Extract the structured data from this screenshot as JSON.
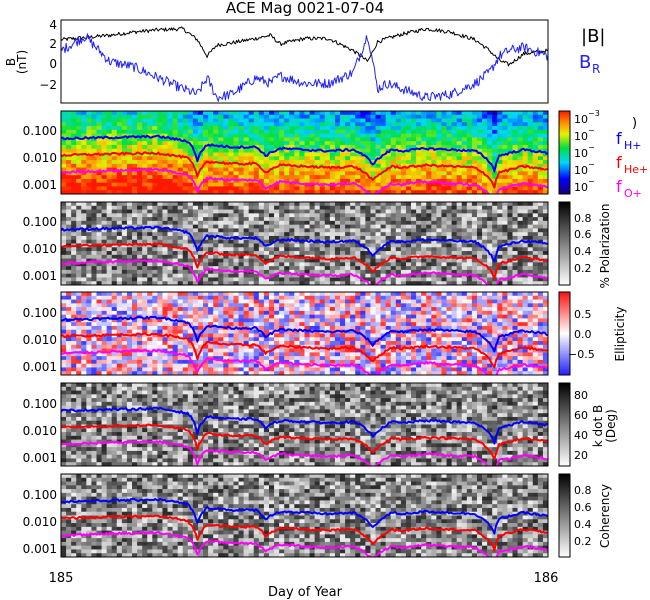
{
  "title": "ACE Mag 0021-07-04",
  "x_axis": {
    "label": "Day of Year",
    "ticks": [
      "185",
      "186"
    ],
    "range": [
      185,
      186
    ]
  },
  "colors": {
    "frame": "#000000",
    "B_magnitude": "#000000",
    "B_R": "#2020ff",
    "f_H": "#0000ff",
    "f_He": "#ff0000",
    "f_O": "#ff00ff"
  },
  "panels": {
    "mag": {
      "ylabel": "B",
      "yunit": "(nT)",
      "yticks": [
        "4",
        "2",
        "0",
        "−2"
      ],
      "legend_B": "|B|",
      "legend_BR_main": "B",
      "legend_BR_sub": "R"
    },
    "power": {
      "yticks": [
        "0.100",
        "0.010",
        "0.001"
      ],
      "colorbar_ticks": [
        "10",
        "10",
        "10",
        "10",
        "10"
      ],
      "colorbar_top_exp": "−3",
      "colorbar_other_exp": "−",
      "legend_H_main": "f",
      "legend_H_sub": "H+",
      "legend_He_main": "f",
      "legend_He_sub": "He+",
      "legend_O_main": "f",
      "legend_O_sub": "O+",
      "bracket": ")"
    },
    "polarization": {
      "yticks": [
        "0.100",
        "0.010",
        "0.001"
      ],
      "colorbar_ticks": [
        "0.8",
        "0.6",
        "0.4",
        "0.2"
      ],
      "colorbar_label": "% Polarization"
    },
    "ellipticity": {
      "yticks": [
        "0.100",
        "0.010",
        "0.001"
      ],
      "colorbar_ticks": [
        "0.5",
        "0.0",
        "−0.5"
      ],
      "colorbar_label": "Ellipticity"
    },
    "kdotb": {
      "yticks": [
        "0.100",
        "0.010",
        "0.001"
      ],
      "colorbar_ticks": [
        "80",
        "60",
        "40",
        "20"
      ],
      "colorbar_label_1": "k dot B",
      "colorbar_label_2": "(Deg)"
    },
    "coherency": {
      "yticks": [
        "0.100",
        "0.010",
        "0.001"
      ],
      "colorbar_ticks": [
        "0.8",
        "0.6",
        "0.4",
        "0.2"
      ],
      "colorbar_label": "Coherency"
    }
  },
  "chart_data": [
    {
      "type": "line",
      "title": "ACE Mag 0021-07-04",
      "xlabel": "Day of Year",
      "ylabel": "B (nT)",
      "xlim": [
        185,
        186
      ],
      "ylim": [
        -3.3,
        4.3
      ],
      "series": [
        {
          "name": "|B|",
          "x": [
            185.0,
            185.05,
            185.1,
            185.15,
            185.2,
            185.25,
            185.28,
            185.3,
            185.32,
            185.35,
            185.4,
            185.43,
            185.45,
            185.5,
            185.55,
            185.6,
            185.63,
            185.65,
            185.67,
            185.7,
            185.75,
            185.8,
            185.85,
            185.88,
            185.9,
            185.92,
            185.95,
            186.0
          ],
          "y": [
            2.5,
            2.7,
            2.9,
            3.2,
            3.4,
            3.5,
            2.5,
            1.0,
            2.0,
            2.2,
            2.6,
            2.9,
            2.1,
            2.6,
            2.6,
            1.5,
            0.5,
            2.3,
            2.6,
            3.0,
            3.5,
            3.2,
            2.5,
            1.5,
            0.6,
            0.2,
            1.2,
            1.5
          ]
        },
        {
          "name": "B_R",
          "x": [
            185.0,
            185.05,
            185.1,
            185.15,
            185.2,
            185.25,
            185.28,
            185.3,
            185.32,
            185.35,
            185.4,
            185.43,
            185.45,
            185.5,
            185.55,
            185.6,
            185.63,
            185.65,
            185.67,
            185.7,
            185.75,
            185.8,
            185.85,
            185.88,
            185.9,
            185.92,
            185.95,
            186.0
          ],
          "y": [
            1.5,
            2.8,
            0.5,
            0.0,
            -1.0,
            -2.0,
            -2.5,
            -1.0,
            -2.8,
            -2.5,
            -1.0,
            -1.5,
            -0.8,
            -1.5,
            -1.5,
            -0.5,
            3.0,
            -2.0,
            -1.5,
            -2.0,
            -2.8,
            -2.5,
            -1.5,
            -0.5,
            1.0,
            1.5,
            1.8,
            1.0
          ]
        }
      ]
    },
    {
      "type": "line",
      "yscale": "log",
      "ylim": [
        0.0005,
        0.5
      ],
      "xlim": [
        185,
        186
      ],
      "series": [
        {
          "name": "f_H+",
          "x": [
            185.0,
            185.1,
            185.2,
            185.26,
            185.28,
            185.3,
            185.35,
            185.4,
            185.42,
            185.45,
            185.5,
            185.55,
            185.6,
            185.64,
            185.66,
            185.68,
            185.7,
            185.75,
            185.8,
            185.85,
            185.89,
            185.9,
            185.92,
            185.95,
            186.0
          ],
          "y": [
            0.05,
            0.055,
            0.06,
            0.04,
            0.008,
            0.03,
            0.025,
            0.025,
            0.012,
            0.022,
            0.02,
            0.018,
            0.02,
            0.006,
            0.012,
            0.02,
            0.018,
            0.022,
            0.02,
            0.018,
            0.0035,
            0.012,
            0.015,
            0.02,
            0.015
          ]
        },
        {
          "name": "f_He+",
          "x": [
            185.0,
            185.1,
            185.2,
            185.26,
            185.28,
            185.3,
            185.35,
            185.4,
            185.42,
            185.45,
            185.5,
            185.55,
            185.6,
            185.64,
            185.66,
            185.68,
            185.7,
            185.75,
            185.8,
            185.85,
            185.89,
            185.9,
            185.92,
            185.95,
            186.0
          ],
          "y": [
            0.0125,
            0.014,
            0.015,
            0.01,
            0.002,
            0.0075,
            0.0062,
            0.0062,
            0.003,
            0.0055,
            0.005,
            0.0045,
            0.005,
            0.0015,
            0.003,
            0.005,
            0.0045,
            0.0055,
            0.005,
            0.0045,
            0.0009,
            0.003,
            0.0037,
            0.005,
            0.0037
          ]
        },
        {
          "name": "f_O+",
          "x": [
            185.0,
            185.1,
            185.2,
            185.26,
            185.28,
            185.3,
            185.35,
            185.4,
            185.42,
            185.45,
            185.5,
            185.55,
            185.6,
            185.64,
            185.66,
            185.68,
            185.7,
            185.75,
            185.8,
            185.85,
            185.89,
            185.9,
            185.92,
            185.95,
            186.0
          ],
          "y": [
            0.003,
            0.0035,
            0.0038,
            0.0025,
            0.0006,
            0.0019,
            0.0016,
            0.0016,
            0.0008,
            0.0014,
            0.0012,
            0.0011,
            0.0012,
            0.0004,
            0.0008,
            0.0012,
            0.0011,
            0.0014,
            0.0012,
            0.0011,
            0.00023,
            0.0008,
            0.0009,
            0.0012,
            0.0009
          ]
        }
      ]
    }
  ]
}
